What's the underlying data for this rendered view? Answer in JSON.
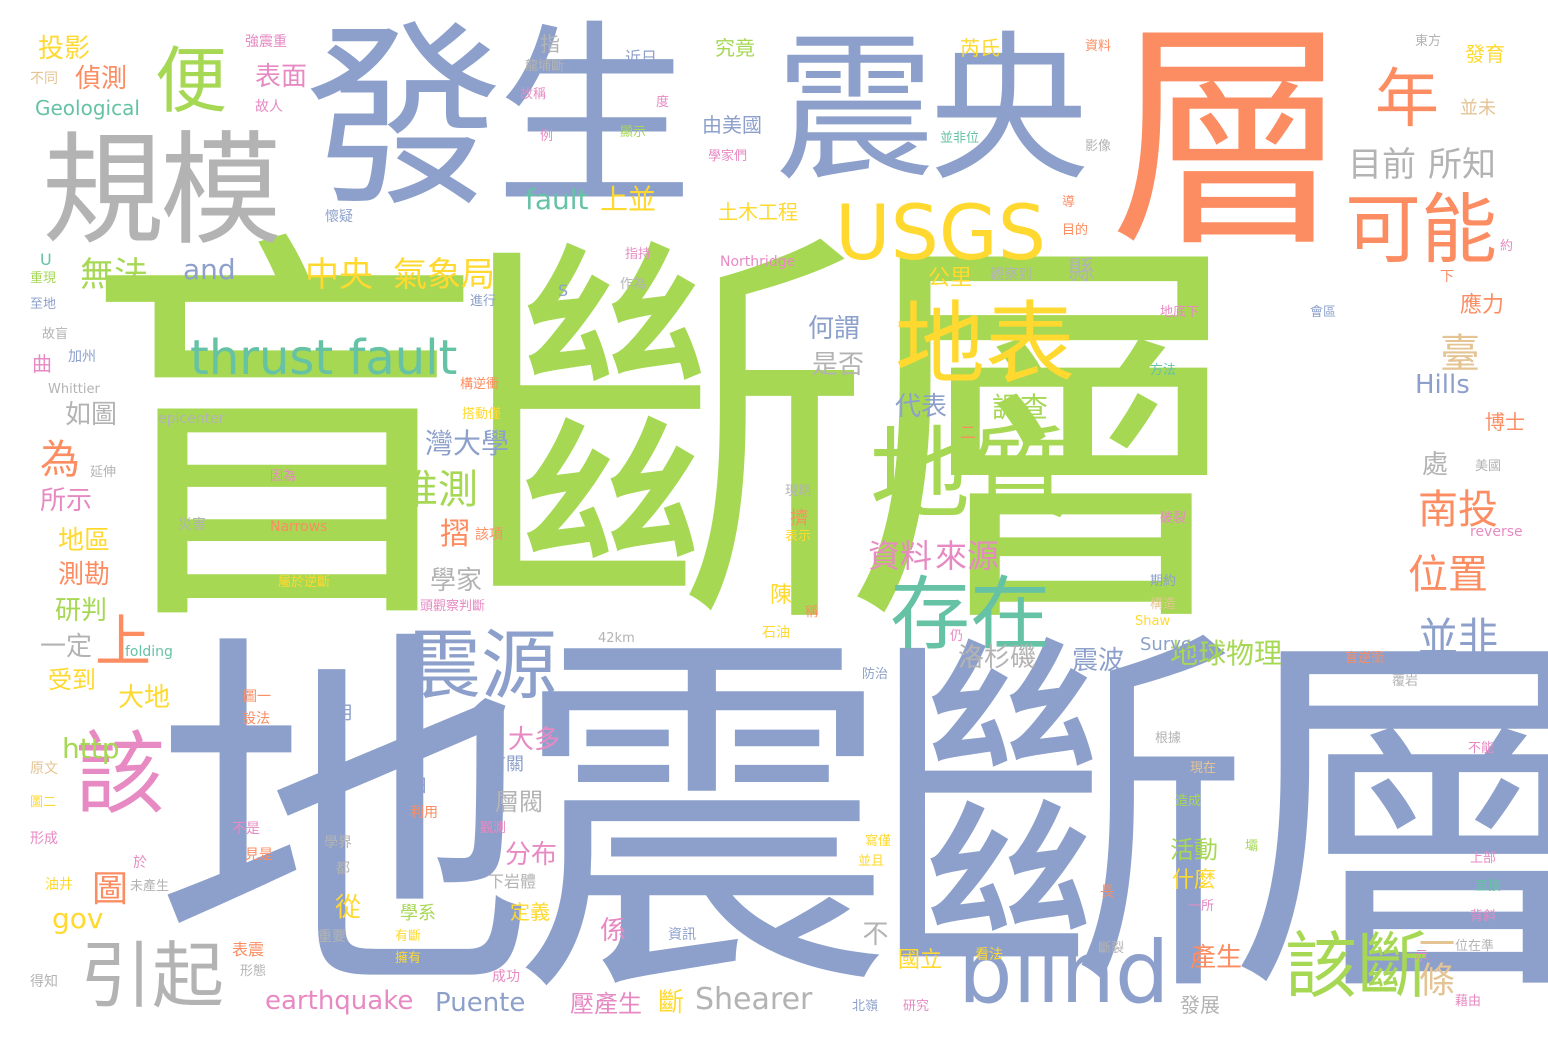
{
  "palette": {
    "green": "#a6d854",
    "blue": "#8da0cb",
    "orange": "#fc8d62",
    "gray": "#b3b3b3",
    "yellow": "#ffd92f",
    "teal": "#66c2a5",
    "pink": "#e78ac3",
    "tan": "#e5c494"
  },
  "words": [
    {
      "text": "盲斷層",
      "color": "green"
    },
    {
      "text": "地震斷層",
      "color": "blue"
    },
    {
      "text": "發生",
      "color": "blue"
    },
    {
      "text": "層",
      "color": "orange"
    },
    {
      "text": "震央",
      "color": "blue"
    },
    {
      "text": "規模",
      "color": "gray"
    },
    {
      "text": "便",
      "color": "green"
    },
    {
      "text": "USGS",
      "color": "yellow"
    },
    {
      "text": "可能",
      "color": "orange"
    },
    {
      "text": "年",
      "color": "orange"
    },
    {
      "text": "目前",
      "color": "gray"
    },
    {
      "text": "所知",
      "color": "gray"
    },
    {
      "text": "地表",
      "color": "yellow"
    },
    {
      "text": "地質",
      "color": "green"
    },
    {
      "text": "存在",
      "color": "teal"
    },
    {
      "text": "thrust fault",
      "color": "teal"
    },
    {
      "text": "震源",
      "color": "blue"
    },
    {
      "text": "該",
      "color": "pink"
    },
    {
      "text": "blind",
      "color": "blue"
    },
    {
      "text": "該斷",
      "color": "green"
    },
    {
      "text": "引起",
      "color": "gray"
    },
    {
      "text": "中央",
      "color": "yellow"
    },
    {
      "text": "氣象局",
      "color": "yellow"
    },
    {
      "text": "無法",
      "color": "green"
    },
    {
      "text": "and",
      "color": "blue"
    },
    {
      "text": "fault",
      "color": "teal"
    },
    {
      "text": "上並",
      "color": "yellow"
    },
    {
      "text": "推測",
      "color": "green"
    },
    {
      "text": "資料",
      "color": "pink"
    },
    {
      "text": "來源",
      "color": "pink"
    },
    {
      "text": "南投",
      "color": "orange"
    },
    {
      "text": "位置",
      "color": "orange"
    },
    {
      "text": "並非",
      "color": "blue"
    },
    {
      "text": "一條",
      "color": "tan"
    },
    {
      "text": "地球物理",
      "color": "green"
    },
    {
      "text": "震波",
      "color": "blue"
    },
    {
      "text": "洛杉磯",
      "color": "gray"
    },
    {
      "text": "Shearer",
      "color": "gray"
    },
    {
      "text": "earthquake",
      "color": "pink"
    },
    {
      "text": "Puente",
      "color": "blue"
    },
    {
      "text": "投影",
      "color": "yellow"
    },
    {
      "text": "偵測",
      "color": "orange"
    },
    {
      "text": "Geological",
      "color": "teal"
    },
    {
      "text": "表面",
      "color": "pink"
    },
    {
      "text": "如圖",
      "color": "gray"
    },
    {
      "text": "為",
      "color": "orange"
    },
    {
      "text": "所示",
      "color": "pink"
    },
    {
      "text": "地區",
      "color": "yellow"
    },
    {
      "text": "測勘",
      "color": "orange"
    },
    {
      "text": "研判",
      "color": "green"
    },
    {
      "text": "一定",
      "color": "gray"
    },
    {
      "text": "受到",
      "color": "yellow"
    },
    {
      "text": "上",
      "color": "orange"
    },
    {
      "text": "大地",
      "color": "yellow"
    },
    {
      "text": "http",
      "color": "green"
    },
    {
      "text": "圖",
      "color": "orange"
    },
    {
      "text": "gov",
      "color": "yellow"
    },
    {
      "text": "代表",
      "color": "blue"
    },
    {
      "text": "調查",
      "color": "green"
    },
    {
      "text": "灣大學",
      "color": "blue"
    },
    {
      "text": "學家",
      "color": "gray"
    },
    {
      "text": "摺",
      "color": "orange"
    },
    {
      "text": "大多",
      "color": "pink"
    },
    {
      "text": "層閥",
      "color": "gray"
    },
    {
      "text": "分布",
      "color": "pink"
    },
    {
      "text": "從",
      "color": "yellow"
    },
    {
      "text": "係",
      "color": "pink"
    },
    {
      "text": "定義",
      "color": "yellow"
    },
    {
      "text": "活動",
      "color": "green"
    },
    {
      "text": "產生",
      "color": "orange"
    },
    {
      "text": "壓產生",
      "color": "pink"
    },
    {
      "text": "斷",
      "color": "yellow"
    },
    {
      "text": "公里",
      "color": "yellow"
    },
    {
      "text": "何謂",
      "color": "blue"
    },
    {
      "text": "是否",
      "color": "gray"
    },
    {
      "text": "國立",
      "color": "yellow"
    },
    {
      "text": "臺",
      "color": "tan"
    },
    {
      "text": "Hills",
      "color": "blue"
    },
    {
      "text": "應力",
      "color": "orange"
    },
    {
      "text": "博士",
      "color": "orange"
    },
    {
      "text": "處",
      "color": "gray"
    },
    {
      "text": "縣",
      "color": "gray"
    },
    {
      "text": "土木工程",
      "color": "yellow"
    },
    {
      "text": "由美國",
      "color": "blue"
    },
    {
      "text": "究竟",
      "color": "green"
    },
    {
      "text": "芮氏",
      "color": "yellow"
    },
    {
      "text": "發育",
      "color": "yellow"
    },
    {
      "text": "並未",
      "color": "tan"
    },
    {
      "text": "Survey",
      "color": "blue"
    },
    {
      "text": "不",
      "color": "gray"
    },
    {
      "text": "陳",
      "color": "yellow"
    },
    {
      "text": "什麼",
      "color": "yellow"
    },
    {
      "text": "發展",
      "color": "gray"
    },
    {
      "text": "Northridge",
      "color": "pink"
    },
    {
      "text": "指",
      "color": "gray"
    },
    {
      "text": "近日",
      "color": "blue"
    },
    {
      "text": "資料",
      "color": "orange"
    },
    {
      "text": "東方",
      "color": "gray"
    },
    {
      "text": "強震重",
      "color": "pink"
    },
    {
      "text": "不同",
      "color": "tan"
    },
    {
      "text": "故人",
      "color": "pink"
    },
    {
      "text": "度",
      "color": "pink"
    },
    {
      "text": "顯示",
      "color": "green"
    },
    {
      "text": "影像",
      "color": "gray"
    },
    {
      "text": "懷疑",
      "color": "blue"
    },
    {
      "text": "目的",
      "color": "orange"
    },
    {
      "text": "U",
      "color": "teal"
    },
    {
      "text": "重現",
      "color": "green"
    },
    {
      "text": "至地",
      "color": "blue"
    },
    {
      "text": "進行",
      "color": "blue"
    },
    {
      "text": "作為",
      "color": "gray"
    },
    {
      "text": "S",
      "color": "blue"
    },
    {
      "text": "地底下",
      "color": "pink"
    },
    {
      "text": "會區",
      "color": "blue"
    },
    {
      "text": "加州",
      "color": "blue"
    },
    {
      "text": "Whittier",
      "color": "gray"
    },
    {
      "text": "曲",
      "color": "pink"
    },
    {
      "text": "epicenter",
      "color": "gray"
    },
    {
      "text": "延伸",
      "color": "gray"
    },
    {
      "text": "災害",
      "color": "gray"
    },
    {
      "text": "Narrows",
      "color": "orange"
    },
    {
      "text": "因為",
      "color": "pink"
    },
    {
      "text": "擠",
      "color": "orange"
    },
    {
      "text": "表示",
      "color": "yellow"
    },
    {
      "text": "破裂",
      "color": "pink"
    },
    {
      "text": "美國",
      "color": "gray"
    },
    {
      "text": "reverse",
      "color": "pink"
    },
    {
      "text": "42km",
      "color": "gray"
    },
    {
      "text": "石油",
      "color": "yellow"
    },
    {
      "text": "folding",
      "color": "teal"
    },
    {
      "text": "防治",
      "color": "blue"
    },
    {
      "text": "月",
      "color": "blue"
    },
    {
      "text": "日",
      "color": "blue"
    },
    {
      "text": "有關",
      "color": "blue"
    },
    {
      "text": "利用",
      "color": "orange"
    },
    {
      "text": "學界",
      "color": "gray"
    },
    {
      "text": "重要",
      "color": "gray"
    },
    {
      "text": "資訊",
      "color": "blue"
    },
    {
      "text": "成功",
      "color": "pink"
    },
    {
      "text": "下岩體",
      "color": "gray"
    },
    {
      "text": "學系",
      "color": "green"
    },
    {
      "text": "北嶺",
      "color": "blue"
    },
    {
      "text": "研究",
      "color": "pink"
    },
    {
      "text": "原文",
      "color": "tan"
    },
    {
      "text": "形成",
      "color": "pink"
    },
    {
      "text": "得知",
      "color": "gray"
    },
    {
      "text": "油井",
      "color": "yellow"
    },
    {
      "text": "根據",
      "color": "gray"
    },
    {
      "text": "現在",
      "color": "tan"
    },
    {
      "text": "造成",
      "color": "green"
    },
    {
      "text": "上部",
      "color": "pink"
    },
    {
      "text": "直接",
      "color": "teal"
    },
    {
      "text": "背斜",
      "color": "pink"
    },
    {
      "text": "位在準",
      "color": "gray"
    },
    {
      "text": "藉由",
      "color": "pink"
    },
    {
      "text": "不能",
      "color": "pink"
    },
    {
      "text": "看法",
      "color": "yellow"
    },
    {
      "text": "斷裂",
      "color": "gray"
    },
    {
      "text": "長",
      "color": "orange"
    },
    {
      "text": "示",
      "color": "pink"
    },
    {
      "text": "一所",
      "color": "pink"
    },
    {
      "text": "期約",
      "color": "blue"
    },
    {
      "text": "構造",
      "color": "tan"
    },
    {
      "text": "仍",
      "color": "pink"
    },
    {
      "text": "Shaw",
      "color": "yellow"
    },
    {
      "text": "下",
      "color": "orange"
    },
    {
      "text": "約",
      "color": "pink"
    },
    {
      "text": "方法",
      "color": "teal"
    },
    {
      "text": "二",
      "color": "orange"
    },
    {
      "text": "觀察到",
      "color": "gray"
    },
    {
      "text": "導",
      "color": "orange"
    },
    {
      "text": "並非位",
      "color": "teal"
    },
    {
      "text": "學家們",
      "color": "pink"
    },
    {
      "text": "例",
      "color": "pink"
    },
    {
      "text": "故稱",
      "color": "pink"
    },
    {
      "text": "盲逆衝",
      "color": "orange"
    },
    {
      "text": "覆岩",
      "color": "gray"
    },
    {
      "text": "不是",
      "color": "pink"
    },
    {
      "text": "見是",
      "color": "orange"
    },
    {
      "text": "於",
      "color": "pink"
    },
    {
      "text": "未產生",
      "color": "gray"
    },
    {
      "text": "都",
      "color": "gray"
    },
    {
      "text": "寫僅",
      "color": "yellow"
    },
    {
      "text": "並且",
      "color": "yellow"
    },
    {
      "text": "有斷",
      "color": "yellow"
    },
    {
      "text": "表震",
      "color": "orange"
    },
    {
      "text": "形態",
      "color": "gray"
    },
    {
      "text": "觀測",
      "color": "pink"
    },
    {
      "text": "設法",
      "color": "orange"
    },
    {
      "text": "圖一",
      "color": "orange"
    },
    {
      "text": "圖二",
      "color": "yellow"
    },
    {
      "text": "故盲",
      "color": "gray"
    },
    {
      "text": "擁有",
      "color": "yellow"
    },
    {
      "text": "該項",
      "color": "orange"
    },
    {
      "text": "屬於逆斷",
      "color": "yellow"
    },
    {
      "text": "頭觀察判斷",
      "color": "pink"
    },
    {
      "text": "構逆衝",
      "color": "orange"
    },
    {
      "text": "搭動僅",
      "color": "yellow"
    },
    {
      "text": "現期",
      "color": "gray"
    },
    {
      "text": "稱",
      "color": "orange"
    },
    {
      "text": "壩",
      "color": "green"
    },
    {
      "text": "龍埔斷",
      "color": "gray"
    },
    {
      "text": "指持",
      "color": "pink"
    },
    {
      "text": "專",
      "color": "pink"
    }
  ]
}
